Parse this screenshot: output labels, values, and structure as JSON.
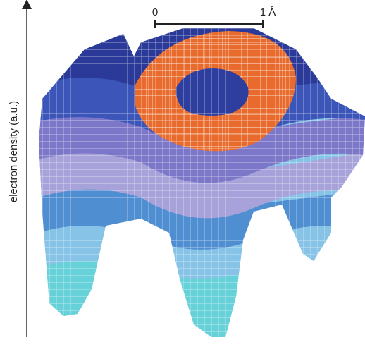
{
  "chart_data": {
    "type": "surface",
    "ylabel": "electron density (a.u.)",
    "scale_bar": {
      "start_label": "0",
      "end_label": "1 Å",
      "length": 1,
      "unit": "Å"
    },
    "description_of_surface": {
      "peak": "ring-shaped crater",
      "peak_color": "orange",
      "low_colors": [
        "navy",
        "purple",
        "light purple",
        "blue",
        "light blue",
        "cyan"
      ]
    },
    "colors": {
      "ring": "#E86A2C",
      "crater": "#2E3E9E",
      "levels": [
        "#2B3A98",
        "#3B56B8",
        "#7C77C8",
        "#A7A2DA",
        "#4F8ED0",
        "#86C3E6",
        "#66D1D8"
      ]
    }
  }
}
